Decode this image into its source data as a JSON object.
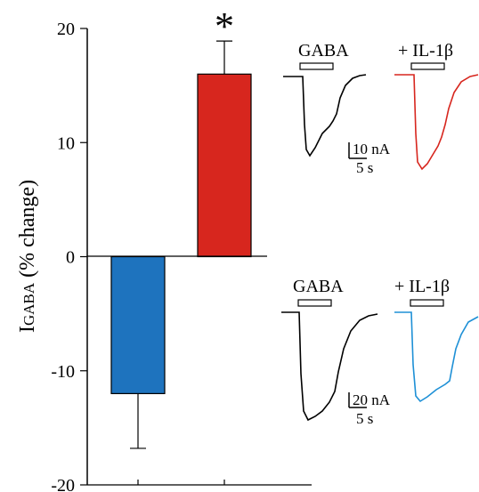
{
  "chart_data": {
    "type": "bar",
    "ylabel": "IGABA (% change)",
    "ylabel_main": "I",
    "ylabel_sub": "GABA",
    "ylabel_rest": " (% change)",
    "ylim": [
      -20,
      20
    ],
    "yticks": [
      -20,
      -10,
      0,
      10,
      20
    ],
    "ytick_labels": [
      "-20",
      "-10",
      "0",
      "10",
      "20"
    ],
    "grid": false,
    "bars": [
      {
        "value": -12,
        "error": 4.8,
        "color": "#1e73be"
      },
      {
        "value": 16,
        "error": 2.9,
        "color": "#d7261e"
      }
    ],
    "annotations": [
      {
        "text": "*",
        "bar": 1
      }
    ]
  },
  "insets": {
    "top": {
      "gaba_label": "GABA",
      "il1b_label": "+ IL-1β",
      "scale_current": "10 nA",
      "scale_time": "5 s",
      "trace_color_control": "#000000",
      "trace_color_il1b": "#d7261e"
    },
    "bottom": {
      "gaba_label": "GABA",
      "il1b_label": "+ IL-1β",
      "scale_current": "20 nA",
      "scale_time": "5 s",
      "trace_color_control": "#000000",
      "trace_color_il1b": "#1e90d6"
    }
  }
}
